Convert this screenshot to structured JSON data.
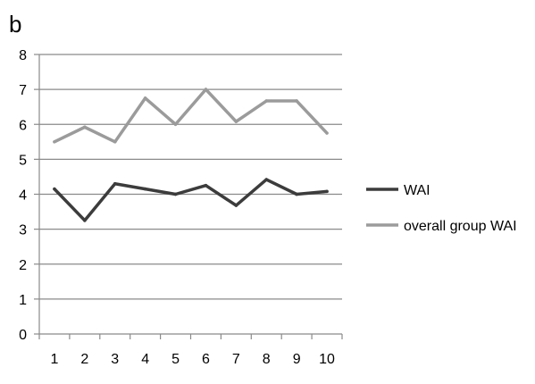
{
  "panel_label": "b",
  "chart_data": {
    "type": "line",
    "title": "",
    "xlabel": "",
    "ylabel": "",
    "x": [
      1,
      2,
      3,
      4,
      5,
      6,
      7,
      8,
      9,
      10
    ],
    "ylim": [
      0,
      8
    ],
    "yticks": [
      0,
      1,
      2,
      3,
      4,
      5,
      6,
      7,
      8
    ],
    "grid": "horizontal",
    "legend_position": "right",
    "series": [
      {
        "name": "WAI",
        "color": "#3c3c3c",
        "values": [
          4.15,
          3.25,
          4.3,
          4.15,
          4.0,
          4.25,
          3.68,
          4.42,
          4.0,
          4.08
        ]
      },
      {
        "name": "overall group WAI",
        "color": "#9b9b9b",
        "values": [
          5.5,
          5.92,
          5.5,
          6.75,
          6.0,
          7.0,
          6.08,
          6.67,
          6.67,
          5.75
        ]
      }
    ]
  }
}
